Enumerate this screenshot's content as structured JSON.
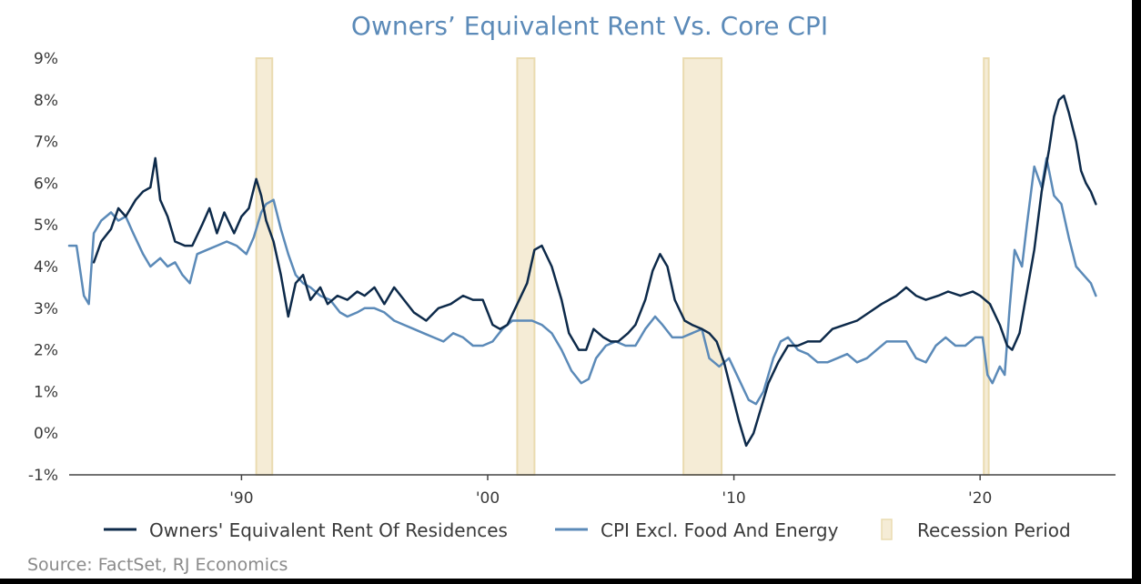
{
  "chart_data": {
    "type": "line",
    "title": "Owners’ Equivalent Rent Vs. Core CPI",
    "source": "Source: FactSet, RJ Economics",
    "ylim": [
      -1,
      9
    ],
    "yticks": [
      -1,
      0,
      1,
      2,
      3,
      4,
      5,
      6,
      7,
      8,
      9
    ],
    "ytick_labels": [
      "-1%",
      "0%",
      "1%",
      "2%",
      "3%",
      "4%",
      "5%",
      "6%",
      "7%",
      "8%",
      "9%"
    ],
    "xlim": [
      1983.0,
      2025.5
    ],
    "xticks": [
      1990,
      2000,
      2010,
      2020
    ],
    "xtick_labels": [
      "'90",
      "'00",
      "'10",
      "'20"
    ],
    "grid": false,
    "legend_position": "bottom",
    "recessions": [
      [
        1990.6,
        1991.25
      ],
      [
        2001.2,
        2001.9
      ],
      [
        2007.95,
        2009.5
      ],
      [
        2020.15,
        2020.35
      ]
    ],
    "series": [
      {
        "name": "Owners' Equivalent Rent Of Residences",
        "color": "#0d2a4a",
        "points": [
          [
            1984.0,
            4.1
          ],
          [
            1984.3,
            4.6
          ],
          [
            1984.7,
            4.9
          ],
          [
            1985.0,
            5.4
          ],
          [
            1985.3,
            5.2
          ],
          [
            1985.7,
            5.6
          ],
          [
            1986.0,
            5.8
          ],
          [
            1986.3,
            5.9
          ],
          [
            1986.5,
            6.6
          ],
          [
            1986.7,
            5.6
          ],
          [
            1987.0,
            5.2
          ],
          [
            1987.3,
            4.6
          ],
          [
            1987.7,
            4.5
          ],
          [
            1988.0,
            4.5
          ],
          [
            1988.4,
            5.0
          ],
          [
            1988.7,
            5.4
          ],
          [
            1989.0,
            4.8
          ],
          [
            1989.3,
            5.3
          ],
          [
            1989.7,
            4.8
          ],
          [
            1990.0,
            5.2
          ],
          [
            1990.3,
            5.4
          ],
          [
            1990.6,
            6.1
          ],
          [
            1990.8,
            5.7
          ],
          [
            1991.0,
            5.1
          ],
          [
            1991.3,
            4.6
          ],
          [
            1991.6,
            3.8
          ],
          [
            1991.9,
            2.8
          ],
          [
            1992.2,
            3.6
          ],
          [
            1992.5,
            3.8
          ],
          [
            1992.8,
            3.2
          ],
          [
            1993.2,
            3.5
          ],
          [
            1993.5,
            3.1
          ],
          [
            1993.9,
            3.3
          ],
          [
            1994.3,
            3.2
          ],
          [
            1994.7,
            3.4
          ],
          [
            1995.0,
            3.3
          ],
          [
            1995.4,
            3.5
          ],
          [
            1995.8,
            3.1
          ],
          [
            1996.2,
            3.5
          ],
          [
            1996.6,
            3.2
          ],
          [
            1997.0,
            2.9
          ],
          [
            1997.5,
            2.7
          ],
          [
            1998.0,
            3.0
          ],
          [
            1998.5,
            3.1
          ],
          [
            1999.0,
            3.3
          ],
          [
            1999.4,
            3.2
          ],
          [
            1999.8,
            3.2
          ],
          [
            2000.2,
            2.6
          ],
          [
            2000.5,
            2.5
          ],
          [
            2000.8,
            2.6
          ],
          [
            2001.2,
            3.1
          ],
          [
            2001.6,
            3.6
          ],
          [
            2001.9,
            4.4
          ],
          [
            2002.2,
            4.5
          ],
          [
            2002.6,
            4.0
          ],
          [
            2003.0,
            3.2
          ],
          [
            2003.3,
            2.4
          ],
          [
            2003.7,
            2.0
          ],
          [
            2004.0,
            2.0
          ],
          [
            2004.3,
            2.5
          ],
          [
            2004.7,
            2.3
          ],
          [
            2005.0,
            2.2
          ],
          [
            2005.3,
            2.2
          ],
          [
            2005.7,
            2.4
          ],
          [
            2006.0,
            2.6
          ],
          [
            2006.4,
            3.2
          ],
          [
            2006.7,
            3.9
          ],
          [
            2007.0,
            4.3
          ],
          [
            2007.3,
            4.0
          ],
          [
            2007.6,
            3.2
          ],
          [
            2008.0,
            2.7
          ],
          [
            2008.3,
            2.6
          ],
          [
            2008.7,
            2.5
          ],
          [
            2009.0,
            2.4
          ],
          [
            2009.3,
            2.2
          ],
          [
            2009.6,
            1.7
          ],
          [
            2009.9,
            1.0
          ],
          [
            2010.2,
            0.3
          ],
          [
            2010.5,
            -0.3
          ],
          [
            2010.8,
            0.0
          ],
          [
            2011.1,
            0.6
          ],
          [
            2011.4,
            1.2
          ],
          [
            2011.8,
            1.7
          ],
          [
            2012.2,
            2.1
          ],
          [
            2012.6,
            2.1
          ],
          [
            2013.0,
            2.2
          ],
          [
            2013.5,
            2.2
          ],
          [
            2014.0,
            2.5
          ],
          [
            2014.5,
            2.6
          ],
          [
            2015.0,
            2.7
          ],
          [
            2015.5,
            2.9
          ],
          [
            2016.0,
            3.1
          ],
          [
            2016.6,
            3.3
          ],
          [
            2017.0,
            3.5
          ],
          [
            2017.4,
            3.3
          ],
          [
            2017.8,
            3.2
          ],
          [
            2018.3,
            3.3
          ],
          [
            2018.7,
            3.4
          ],
          [
            2019.2,
            3.3
          ],
          [
            2019.7,
            3.4
          ],
          [
            2020.0,
            3.3
          ],
          [
            2020.4,
            3.1
          ],
          [
            2020.8,
            2.6
          ],
          [
            2021.1,
            2.1
          ],
          [
            2021.3,
            2.0
          ],
          [
            2021.6,
            2.4
          ],
          [
            2021.9,
            3.4
          ],
          [
            2022.2,
            4.4
          ],
          [
            2022.5,
            5.8
          ],
          [
            2022.8,
            6.8
          ],
          [
            2023.0,
            7.6
          ],
          [
            2023.2,
            8.0
          ],
          [
            2023.4,
            8.1
          ],
          [
            2023.6,
            7.7
          ],
          [
            2023.9,
            7.0
          ],
          [
            2024.1,
            6.3
          ],
          [
            2024.3,
            6.0
          ],
          [
            2024.5,
            5.8
          ],
          [
            2024.7,
            5.5
          ]
        ]
      },
      {
        "name": "CPI Excl. Food And Energy",
        "color": "#5b8ab8",
        "points": [
          [
            1983.0,
            4.5
          ],
          [
            1983.3,
            4.5
          ],
          [
            1983.6,
            3.3
          ],
          [
            1983.8,
            3.1
          ],
          [
            1984.0,
            4.8
          ],
          [
            1984.3,
            5.1
          ],
          [
            1984.7,
            5.3
          ],
          [
            1985.0,
            5.1
          ],
          [
            1985.3,
            5.2
          ],
          [
            1985.6,
            4.8
          ],
          [
            1986.0,
            4.3
          ],
          [
            1986.3,
            4.0
          ],
          [
            1986.7,
            4.2
          ],
          [
            1987.0,
            4.0
          ],
          [
            1987.3,
            4.1
          ],
          [
            1987.6,
            3.8
          ],
          [
            1987.9,
            3.6
          ],
          [
            1988.2,
            4.3
          ],
          [
            1988.6,
            4.4
          ],
          [
            1989.0,
            4.5
          ],
          [
            1989.4,
            4.6
          ],
          [
            1989.8,
            4.5
          ],
          [
            1990.2,
            4.3
          ],
          [
            1990.5,
            4.7
          ],
          [
            1990.8,
            5.3
          ],
          [
            1991.0,
            5.5
          ],
          [
            1991.3,
            5.6
          ],
          [
            1991.6,
            4.9
          ],
          [
            1991.9,
            4.3
          ],
          [
            1992.2,
            3.8
          ],
          [
            1992.5,
            3.6
          ],
          [
            1992.8,
            3.5
          ],
          [
            1993.2,
            3.3
          ],
          [
            1993.6,
            3.2
          ],
          [
            1994.0,
            2.9
          ],
          [
            1994.3,
            2.8
          ],
          [
            1994.7,
            2.9
          ],
          [
            1995.0,
            3.0
          ],
          [
            1995.4,
            3.0
          ],
          [
            1995.8,
            2.9
          ],
          [
            1996.2,
            2.7
          ],
          [
            1996.6,
            2.6
          ],
          [
            1997.0,
            2.5
          ],
          [
            1997.4,
            2.4
          ],
          [
            1997.8,
            2.3
          ],
          [
            1998.2,
            2.2
          ],
          [
            1998.6,
            2.4
          ],
          [
            1999.0,
            2.3
          ],
          [
            1999.4,
            2.1
          ],
          [
            1999.8,
            2.1
          ],
          [
            2000.2,
            2.2
          ],
          [
            2000.6,
            2.5
          ],
          [
            2001.0,
            2.7
          ],
          [
            2001.4,
            2.7
          ],
          [
            2001.8,
            2.7
          ],
          [
            2002.2,
            2.6
          ],
          [
            2002.6,
            2.4
          ],
          [
            2003.0,
            2.0
          ],
          [
            2003.4,
            1.5
          ],
          [
            2003.8,
            1.2
          ],
          [
            2004.1,
            1.3
          ],
          [
            2004.4,
            1.8
          ],
          [
            2004.8,
            2.1
          ],
          [
            2005.2,
            2.2
          ],
          [
            2005.6,
            2.1
          ],
          [
            2006.0,
            2.1
          ],
          [
            2006.4,
            2.5
          ],
          [
            2006.8,
            2.8
          ],
          [
            2007.1,
            2.6
          ],
          [
            2007.5,
            2.3
          ],
          [
            2007.9,
            2.3
          ],
          [
            2008.3,
            2.4
          ],
          [
            2008.7,
            2.5
          ],
          [
            2009.0,
            1.8
          ],
          [
            2009.4,
            1.6
          ],
          [
            2009.8,
            1.8
          ],
          [
            2010.2,
            1.3
          ],
          [
            2010.6,
            0.8
          ],
          [
            2010.9,
            0.7
          ],
          [
            2011.2,
            1.0
          ],
          [
            2011.6,
            1.8
          ],
          [
            2011.9,
            2.2
          ],
          [
            2012.2,
            2.3
          ],
          [
            2012.6,
            2.0
          ],
          [
            2013.0,
            1.9
          ],
          [
            2013.4,
            1.7
          ],
          [
            2013.8,
            1.7
          ],
          [
            2014.2,
            1.8
          ],
          [
            2014.6,
            1.9
          ],
          [
            2015.0,
            1.7
          ],
          [
            2015.4,
            1.8
          ],
          [
            2015.8,
            2.0
          ],
          [
            2016.2,
            2.2
          ],
          [
            2016.6,
            2.2
          ],
          [
            2017.0,
            2.2
          ],
          [
            2017.4,
            1.8
          ],
          [
            2017.8,
            1.7
          ],
          [
            2018.2,
            2.1
          ],
          [
            2018.6,
            2.3
          ],
          [
            2019.0,
            2.1
          ],
          [
            2019.4,
            2.1
          ],
          [
            2019.8,
            2.3
          ],
          [
            2020.1,
            2.3
          ],
          [
            2020.3,
            1.4
          ],
          [
            2020.5,
            1.2
          ],
          [
            2020.8,
            1.6
          ],
          [
            2021.0,
            1.4
          ],
          [
            2021.2,
            3.0
          ],
          [
            2021.4,
            4.4
          ],
          [
            2021.7,
            4.0
          ],
          [
            2021.9,
            5.0
          ],
          [
            2022.2,
            6.4
          ],
          [
            2022.5,
            5.9
          ],
          [
            2022.7,
            6.6
          ],
          [
            2023.0,
            5.7
          ],
          [
            2023.3,
            5.5
          ],
          [
            2023.6,
            4.7
          ],
          [
            2023.9,
            4.0
          ],
          [
            2024.2,
            3.8
          ],
          [
            2024.5,
            3.6
          ],
          [
            2024.7,
            3.3
          ]
        ]
      }
    ],
    "legend": [
      {
        "label": "Owners' Equivalent Rent Of Residences",
        "type": "line",
        "color": "#0d2a4a"
      },
      {
        "label": "CPI Excl. Food And Energy",
        "type": "line",
        "color": "#5b8ab8"
      },
      {
        "label": "Recession Period",
        "type": "patch",
        "color": "#f5ecd6"
      }
    ],
    "recession_color": "#f5ecd6",
    "recession_border": "#eadbb0",
    "axis_color": "#444444"
  }
}
